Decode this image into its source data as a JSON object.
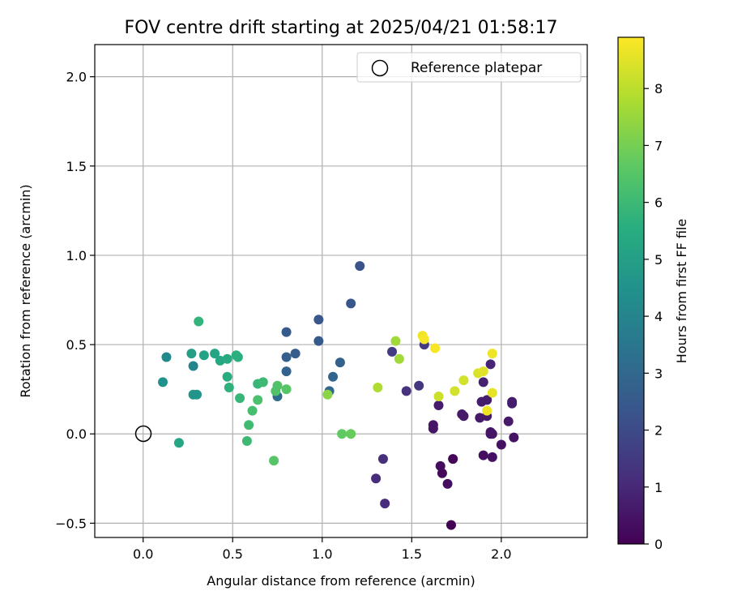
{
  "chart_data": {
    "type": "scatter",
    "title": "FOV centre drift starting at 2025/04/21 01:58:17",
    "xlabel": "Angular distance from reference (arcmin)",
    "ylabel": "Rotation from reference (arcmin)",
    "xlim": [
      -0.27,
      2.48
    ],
    "ylim": [
      -0.58,
      2.18
    ],
    "xticks": [
      0.0,
      0.5,
      1.0,
      1.5,
      2.0
    ],
    "xtick_labels": [
      "0.0",
      "0.5",
      "1.0",
      "1.5",
      "2.0"
    ],
    "yticks": [
      -0.5,
      0.0,
      0.5,
      1.0,
      1.5,
      2.0
    ],
    "ytick_labels": [
      "−0.5",
      "0.0",
      "0.5",
      "1.0",
      "1.5",
      "2.0"
    ],
    "grid": true,
    "legend": {
      "placement": "top-right",
      "entries": [
        "Reference platepar"
      ]
    },
    "reference_point": {
      "x": 0.0,
      "y": 0.0
    },
    "colorbar": {
      "label": "Hours from first FF file",
      "range": [
        0,
        8.9
      ],
      "ticks": [
        0,
        1,
        2,
        3,
        4,
        5,
        6,
        7,
        8
      ],
      "tick_labels": [
        "0",
        "1",
        "2",
        "3",
        "4",
        "5",
        "6",
        "7",
        "8"
      ],
      "colormap": "viridis"
    },
    "points": [
      {
        "x": 1.72,
        "y": -0.51,
        "h": 0.0
      },
      {
        "x": 1.73,
        "y": -0.14,
        "h": 0.1
      },
      {
        "x": 1.67,
        "y": -0.22,
        "h": 0.2
      },
      {
        "x": 1.7,
        "y": -0.28,
        "h": 0.3
      },
      {
        "x": 1.66,
        "y": -0.18,
        "h": 0.3
      },
      {
        "x": 1.9,
        "y": -0.12,
        "h": 0.3
      },
      {
        "x": 1.95,
        "y": -0.13,
        "h": 0.4
      },
      {
        "x": 2.0,
        "y": -0.06,
        "h": 0.4
      },
      {
        "x": 2.07,
        "y": -0.02,
        "h": 0.4
      },
      {
        "x": 1.95,
        "y": 0.0,
        "h": 0.5
      },
      {
        "x": 1.94,
        "y": 0.01,
        "h": 0.5
      },
      {
        "x": 1.62,
        "y": 0.03,
        "h": 0.5
      },
      {
        "x": 1.62,
        "y": 0.05,
        "h": 0.5
      },
      {
        "x": 1.94,
        "y": 0.0,
        "h": 0.5
      },
      {
        "x": 2.04,
        "y": 0.07,
        "h": 0.6
      },
      {
        "x": 1.92,
        "y": 0.1,
        "h": 0.6
      },
      {
        "x": 1.88,
        "y": 0.09,
        "h": 0.6
      },
      {
        "x": 1.79,
        "y": 0.1,
        "h": 0.6
      },
      {
        "x": 1.78,
        "y": 0.11,
        "h": 0.6
      },
      {
        "x": 1.65,
        "y": 0.16,
        "h": 0.7
      },
      {
        "x": 1.89,
        "y": 0.18,
        "h": 0.7
      },
      {
        "x": 1.92,
        "y": 0.19,
        "h": 0.7
      },
      {
        "x": 2.06,
        "y": 0.17,
        "h": 0.7
      },
      {
        "x": 2.06,
        "y": 0.18,
        "h": 0.7
      },
      {
        "x": 1.9,
        "y": 0.29,
        "h": 0.8
      },
      {
        "x": 1.94,
        "y": 0.39,
        "h": 0.9
      },
      {
        "x": 1.3,
        "y": -0.25,
        "h": 1.1
      },
      {
        "x": 1.35,
        "y": -0.39,
        "h": 1.1
      },
      {
        "x": 1.34,
        "y": -0.14,
        "h": 1.2
      },
      {
        "x": 1.47,
        "y": 0.24,
        "h": 1.3
      },
      {
        "x": 1.54,
        "y": 0.27,
        "h": 1.4
      },
      {
        "x": 1.39,
        "y": 0.46,
        "h": 1.5
      },
      {
        "x": 1.57,
        "y": 0.5,
        "h": 1.5
      },
      {
        "x": 1.21,
        "y": 0.94,
        "h": 2.3
      },
      {
        "x": 1.16,
        "y": 0.73,
        "h": 2.4
      },
      {
        "x": 0.98,
        "y": 0.64,
        "h": 2.4
      },
      {
        "x": 0.8,
        "y": 0.57,
        "h": 2.5
      },
      {
        "x": 0.98,
        "y": 0.52,
        "h": 2.5
      },
      {
        "x": 0.85,
        "y": 0.45,
        "h": 2.6
      },
      {
        "x": 0.8,
        "y": 0.43,
        "h": 2.7
      },
      {
        "x": 1.1,
        "y": 0.4,
        "h": 2.7
      },
      {
        "x": 0.8,
        "y": 0.35,
        "h": 2.8
      },
      {
        "x": 1.06,
        "y": 0.32,
        "h": 2.9
      },
      {
        "x": 1.04,
        "y": 0.24,
        "h": 3.0
      },
      {
        "x": 0.75,
        "y": 0.21,
        "h": 3.1
      },
      {
        "x": 0.28,
        "y": 0.38,
        "h": 4.0
      },
      {
        "x": 0.13,
        "y": 0.43,
        "h": 4.2
      },
      {
        "x": 0.11,
        "y": 0.29,
        "h": 4.5
      },
      {
        "x": 0.28,
        "y": 0.22,
        "h": 4.6
      },
      {
        "x": 0.3,
        "y": 0.22,
        "h": 4.6
      },
      {
        "x": 0.27,
        "y": 0.45,
        "h": 5.0
      },
      {
        "x": 0.34,
        "y": 0.44,
        "h": 5.1
      },
      {
        "x": 0.4,
        "y": 0.45,
        "h": 5.2
      },
      {
        "x": 0.43,
        "y": 0.41,
        "h": 5.3
      },
      {
        "x": 0.2,
        "y": -0.05,
        "h": 5.3
      },
      {
        "x": 0.47,
        "y": 0.42,
        "h": 5.4
      },
      {
        "x": 0.47,
        "y": 0.32,
        "h": 5.5
      },
      {
        "x": 0.52,
        "y": 0.44,
        "h": 5.6
      },
      {
        "x": 0.53,
        "y": 0.43,
        "h": 5.6
      },
      {
        "x": 0.48,
        "y": 0.26,
        "h": 5.7
      },
      {
        "x": 0.31,
        "y": 0.63,
        "h": 5.8
      },
      {
        "x": 0.54,
        "y": 0.2,
        "h": 5.9
      },
      {
        "x": 0.64,
        "y": 0.28,
        "h": 5.9
      },
      {
        "x": 0.67,
        "y": 0.29,
        "h": 6.0
      },
      {
        "x": 0.58,
        "y": -0.04,
        "h": 6.0
      },
      {
        "x": 0.59,
        "y": 0.05,
        "h": 6.1
      },
      {
        "x": 0.61,
        "y": 0.13,
        "h": 6.2
      },
      {
        "x": 0.64,
        "y": 0.19,
        "h": 6.3
      },
      {
        "x": 0.74,
        "y": 0.24,
        "h": 6.4
      },
      {
        "x": 0.75,
        "y": 0.27,
        "h": 6.4
      },
      {
        "x": 0.8,
        "y": 0.25,
        "h": 6.5
      },
      {
        "x": 0.73,
        "y": -0.15,
        "h": 6.5
      },
      {
        "x": 1.11,
        "y": 0.0,
        "h": 6.7
      },
      {
        "x": 1.16,
        "y": 0.0,
        "h": 6.8
      },
      {
        "x": 1.03,
        "y": 0.22,
        "h": 7.3
      },
      {
        "x": 1.41,
        "y": 0.52,
        "h": 7.6
      },
      {
        "x": 1.43,
        "y": 0.42,
        "h": 7.6
      },
      {
        "x": 1.31,
        "y": 0.26,
        "h": 7.8
      },
      {
        "x": 1.65,
        "y": 0.21,
        "h": 8.2
      },
      {
        "x": 1.79,
        "y": 0.3,
        "h": 8.3
      },
      {
        "x": 1.74,
        "y": 0.24,
        "h": 8.3
      },
      {
        "x": 1.87,
        "y": 0.34,
        "h": 8.4
      },
      {
        "x": 1.9,
        "y": 0.35,
        "h": 8.5
      },
      {
        "x": 1.95,
        "y": 0.23,
        "h": 8.6
      },
      {
        "x": 1.92,
        "y": 0.13,
        "h": 8.7
      },
      {
        "x": 1.95,
        "y": 0.45,
        "h": 8.7
      },
      {
        "x": 1.56,
        "y": 0.55,
        "h": 8.7
      },
      {
        "x": 1.57,
        "y": 0.53,
        "h": 8.8
      },
      {
        "x": 1.63,
        "y": 0.48,
        "h": 8.8
      }
    ]
  }
}
